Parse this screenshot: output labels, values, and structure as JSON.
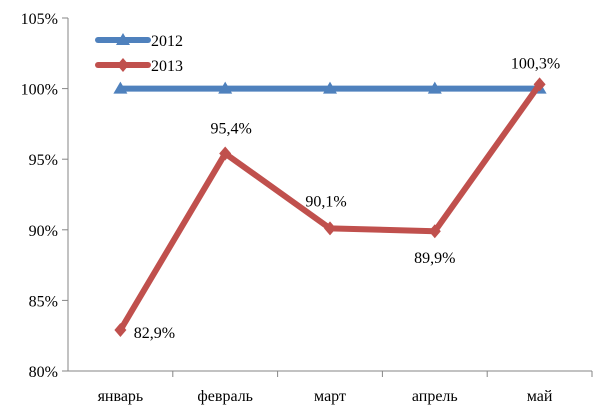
{
  "chart_data": {
    "type": "line",
    "categories": [
      "январь",
      "февраль",
      "март",
      "апрель",
      "май"
    ],
    "yticks": [
      "80%",
      "85%",
      "90%",
      "95%",
      "100%",
      "105%"
    ],
    "ylim": [
      80,
      105
    ],
    "ytick_step": 5,
    "grid": false,
    "legend_position": "top-left",
    "series": [
      {
        "name": "2012",
        "values": [
          100,
          100,
          100,
          100,
          100
        ],
        "color": "#4F81BD",
        "marker": "triangle",
        "data_labels": []
      },
      {
        "name": "2013",
        "values": [
          82.9,
          95.4,
          90.1,
          89.9,
          100.3
        ],
        "color": "#C0504D",
        "marker": "diamond",
        "data_labels": [
          "82,9%",
          "95,4%",
          "90,1%",
          "89,9%",
          "100,3%"
        ]
      }
    ]
  }
}
